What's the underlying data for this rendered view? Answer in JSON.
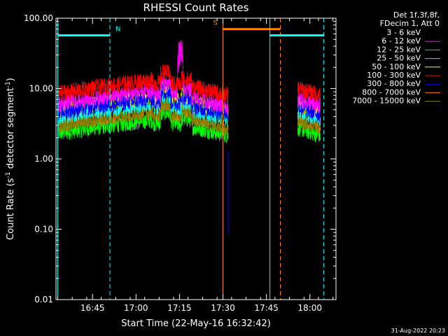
{
  "chart_data": {
    "type": "line",
    "title": "RHESSI Count Rates",
    "xlabel": "Start Time (22-May-16 16:32:42)",
    "ylabel_main": "Count Rate (s",
    "ylabel_sup": "-1",
    "ylabel_tail": " detector segment",
    "ylabel_sup2": "-1",
    "ylabel_close": ")",
    "yscale": "log",
    "ylim": [
      0.01,
      100
    ],
    "xlim_minutes": [
      16.54,
      18.15
    ],
    "y_ticks": [
      {
        "value": 100,
        "label": "100.00"
      },
      {
        "value": 10,
        "label": "10.00"
      },
      {
        "value": 1,
        "label": "1.00"
      },
      {
        "value": 0.1,
        "label": "0.10"
      },
      {
        "value": 0.01,
        "label": "0.01"
      }
    ],
    "x_ticks": [
      {
        "value": 16.75,
        "label": "16:45"
      },
      {
        "value": 17.0,
        "label": "17:00"
      },
      {
        "value": 17.25,
        "label": "17:15"
      },
      {
        "value": 17.5,
        "label": "17:30"
      },
      {
        "value": 17.75,
        "label": "17:45"
      },
      {
        "value": 18.0,
        "label": "18:00"
      }
    ],
    "legend_header": [
      "Det 1f,3f,8f,",
      "FDecim 1, Att 0"
    ],
    "series": [
      {
        "name": "3 - 6 keV",
        "color": "#000000",
        "base": 3.6
      },
      {
        "name": "6 - 12 keV",
        "color": "#ff00ff",
        "base": 6.0
      },
      {
        "name": "12 - 25 keV",
        "color": "#00ff00",
        "base": 2.3
      },
      {
        "name": "25 - 50 keV",
        "color": "#00ffff",
        "base": 4.0
      },
      {
        "name": "50 - 100 keV",
        "color": "#ffff00",
        "base": 5.0
      },
      {
        "name": "100 - 300 keV",
        "color": "#ff0000",
        "base": 8.5
      },
      {
        "name": "300 - 800 keV",
        "color": "#0000ff",
        "base": 4.6
      },
      {
        "name": "800 - 7000 keV",
        "color": "#ff8000",
        "base": 3.2
      },
      {
        "name": "7000 - 15000 keV",
        "color": "#808000",
        "base": 3.0
      }
    ],
    "intervals": [
      {
        "flag": "N",
        "color": "#00ffff",
        "start": 16.55,
        "end": 16.85,
        "level": 57
      },
      {
        "flag": "S",
        "color": "#ff8000",
        "start": 17.5,
        "end": 17.83,
        "level": 70
      },
      {
        "flag": "",
        "color": "#00ffff",
        "start": 17.77,
        "end": 18.08,
        "level": 57
      }
    ],
    "data_gap": [
      17.53,
      17.93
    ],
    "timestamp": "31-Aug-2022 20:23"
  }
}
